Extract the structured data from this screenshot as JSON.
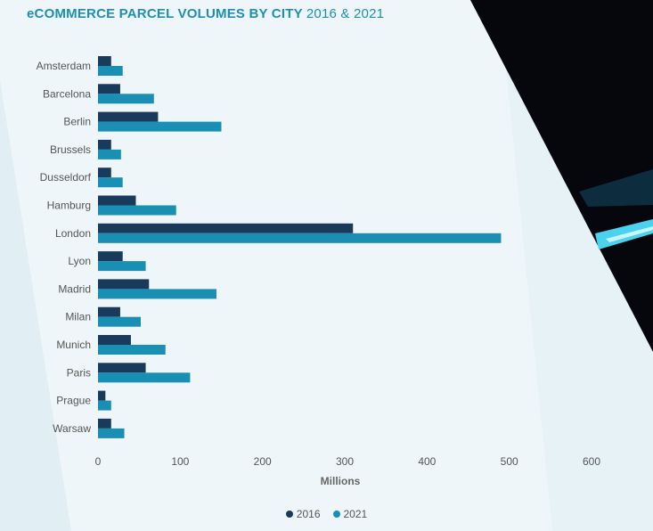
{
  "title": {
    "main": "eCOMMERCE PARCEL VOLUMES BY CITY",
    "sub": "2016 & 2021"
  },
  "colors": {
    "accent": "#1e8fb2",
    "series_2016": "#1a3a5c",
    "series_2021": "#1a8fb4"
  },
  "chart_data": {
    "type": "bar",
    "orientation": "horizontal",
    "title": "eCOMMERCE PARCEL VOLUMES BY CITY 2016 & 2021",
    "xlabel": "Millions",
    "ylabel": "",
    "xlim": [
      0,
      600
    ],
    "xticks": [
      0,
      100,
      200,
      300,
      400,
      500,
      600
    ],
    "grid": false,
    "legend_position": "bottom",
    "categories": [
      "Amsterdam",
      "Barcelona",
      "Berlin",
      "Brussels",
      "Dusseldorf",
      "Hamburg",
      "London",
      "Lyon",
      "Madrid",
      "Milan",
      "Munich",
      "Paris",
      "Prague",
      "Warsaw"
    ],
    "series": [
      {
        "name": "2016",
        "values": [
          16,
          27,
          73,
          16,
          16,
          46,
          310,
          30,
          62,
          27,
          40,
          58,
          9,
          16
        ]
      },
      {
        "name": "2021",
        "values": [
          30,
          68,
          150,
          28,
          30,
          95,
          490,
          58,
          144,
          52,
          82,
          112,
          16,
          32
        ]
      }
    ]
  }
}
